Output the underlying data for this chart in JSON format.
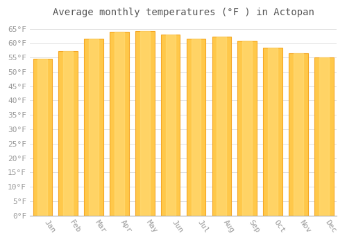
{
  "title": "Average monthly temperatures (°F ) in Actopan",
  "months": [
    "Jan",
    "Feb",
    "Mar",
    "Apr",
    "May",
    "Jun",
    "Jul",
    "Aug",
    "Sep",
    "Oct",
    "Nov",
    "Dec"
  ],
  "values": [
    54.5,
    57.2,
    61.5,
    64.0,
    64.2,
    63.0,
    61.5,
    62.2,
    60.8,
    58.5,
    56.5,
    55.0
  ],
  "bar_color_face": "#FFC84A",
  "bar_color_edge": "#F5A623",
  "background_color": "#FFFFFF",
  "grid_color": "#E0E0E0",
  "tick_label_color": "#999999",
  "title_color": "#555555",
  "ylim": [
    0,
    67
  ],
  "ytick_step": 5,
  "title_fontsize": 10,
  "tick_fontsize": 8,
  "x_label_rotation": -55
}
